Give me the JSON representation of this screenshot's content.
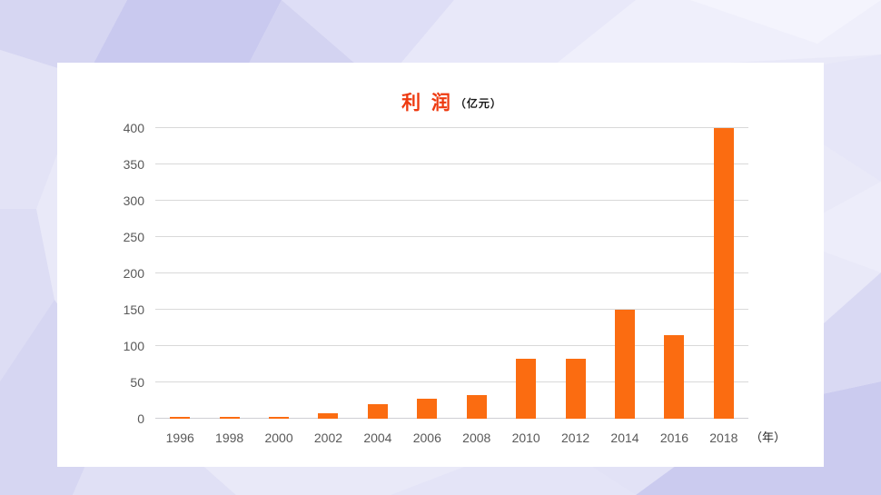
{
  "theme": {
    "slide_background": "#E9E9F8",
    "card_background": "#FFFFFF",
    "bar_color": "#FB6C11",
    "title_color": "#EE3A10",
    "axis_label_color": "#595959",
    "gridline_color": "#D9D9D9"
  },
  "chart_data": {
    "type": "bar",
    "title": "利 润",
    "unit_label": "（亿元）",
    "x_axis_unit": "（年）",
    "categories": [
      "1996",
      "1998",
      "2000",
      "2002",
      "2004",
      "2006",
      "2008",
      "2010",
      "2012",
      "2014",
      "2016",
      "2018"
    ],
    "values": [
      2,
      3,
      3,
      7,
      20,
      27,
      32,
      83,
      83,
      150,
      115,
      400
    ],
    "xlabel": "",
    "ylabel": "",
    "ylim": [
      0,
      400
    ],
    "ytick_interval": 50,
    "yticks": [
      0,
      50,
      100,
      150,
      200,
      250,
      300,
      350,
      400
    ],
    "grid": true,
    "legend": "none"
  }
}
